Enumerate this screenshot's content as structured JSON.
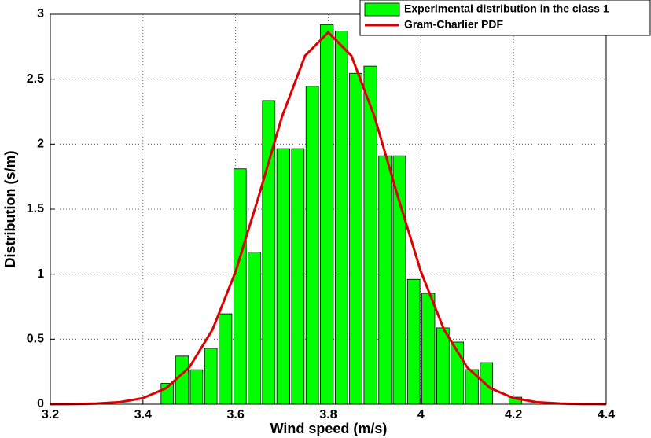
{
  "chart_data": {
    "type": "histogram",
    "xlabel": "Wind speed (m/s)",
    "ylabel": "Distribution (s/m)",
    "xlim": [
      3.2,
      4.4
    ],
    "xticks": [
      3.2,
      3.4,
      3.6,
      3.8,
      4,
      4.2,
      4.4
    ],
    "ylim": [
      0,
      3
    ],
    "yticks": [
      0,
      0.5,
      1,
      1.5,
      2,
      2.5,
      3
    ],
    "grid": true,
    "legend": "top-right",
    "series": [
      {
        "name": "Experimental distribution in the class 1",
        "type": "histogram",
        "color": "#00ff00",
        "bins": [
          3.437,
          3.468,
          3.5,
          3.531,
          3.562,
          3.594,
          3.625,
          3.656,
          3.687,
          3.719,
          3.75,
          3.781,
          3.813,
          3.844,
          3.875,
          3.907,
          3.938,
          3.969,
          4.0,
          4.032,
          4.063,
          4.094,
          4.126,
          4.157,
          4.188,
          4.22
        ],
        "values": [
          0.16,
          0.37,
          0.265,
          0.43,
          0.695,
          1.81,
          1.17,
          2.335,
          1.965,
          1.965,
          2.445,
          2.92,
          2.87,
          2.545,
          2.6,
          1.91,
          1.91,
          0.96,
          0.853,
          0.587,
          0.478,
          0.266,
          0.32,
          0,
          0.054
        ]
      },
      {
        "name": "Gram-Charlier PDF",
        "type": "line",
        "color": "#dd0000",
        "x": [
          3.2,
          3.25,
          3.3,
          3.35,
          3.4,
          3.45,
          3.5,
          3.55,
          3.6,
          3.65,
          3.7,
          3.75,
          3.8,
          3.85,
          3.9,
          3.95,
          4.0,
          4.05,
          4.1,
          4.15,
          4.2,
          4.25,
          4.3,
          4.35,
          4.4
        ],
        "values": [
          0.0003,
          0.001,
          0.005,
          0.016,
          0.047,
          0.123,
          0.283,
          0.573,
          1.02,
          1.6,
          2.21,
          2.68,
          2.86,
          2.68,
          2.21,
          1.6,
          1.02,
          0.573,
          0.283,
          0.123,
          0.047,
          0.016,
          0.005,
          0.001,
          0.0003
        ]
      }
    ]
  }
}
